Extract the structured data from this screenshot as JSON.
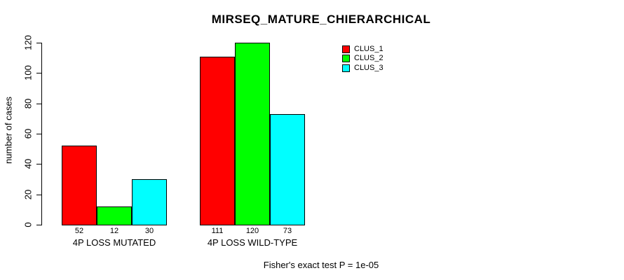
{
  "chart_data": {
    "type": "bar",
    "title": "MIRSEQ_MATURE_CHIERARCHICAL",
    "xlabel": "",
    "ylabel": "number of cases",
    "categories": [
      "4P LOSS MUTATED",
      "4P LOSS WILD-TYPE"
    ],
    "series": [
      {
        "name": "CLUS_1",
        "color": "#ff0000",
        "values": [
          52,
          111
        ]
      },
      {
        "name": "CLUS_2",
        "color": "#00ff00",
        "values": [
          12,
          120
        ]
      },
      {
        "name": "CLUS_3",
        "color": "#00ffff",
        "values": [
          30,
          73
        ]
      }
    ],
    "ylim": [
      0,
      120
    ],
    "yticks": [
      0,
      20,
      40,
      60,
      80,
      100,
      120
    ],
    "grid": false,
    "legend_position": "top-right",
    "bar_value_labels_shown": true
  },
  "footer": {
    "note": "Fisher's exact test P = 1e-05"
  }
}
